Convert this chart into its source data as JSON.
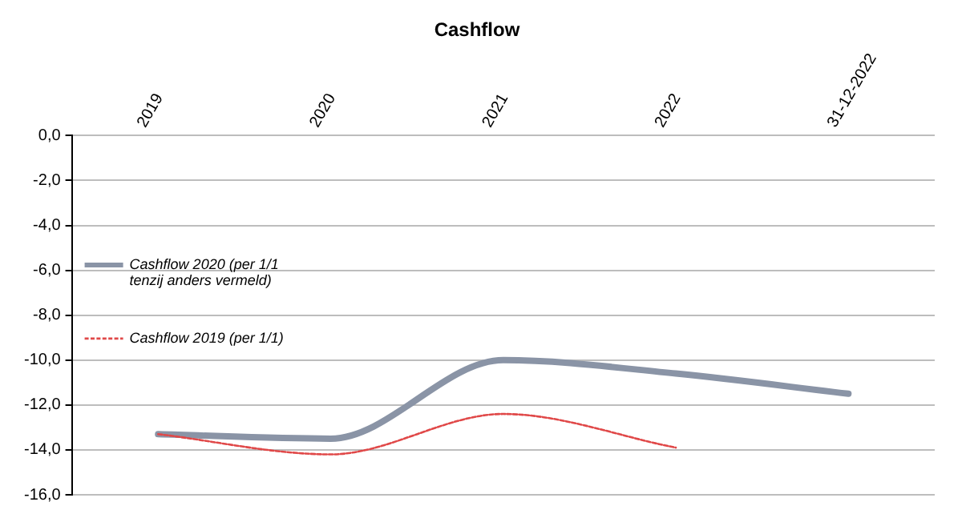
{
  "chart_data": {
    "type": "line",
    "title": "Cashflow",
    "categories": [
      "2019",
      "2020",
      "2021",
      "2022",
      "31-12-2022"
    ],
    "series": [
      {
        "name": "Cashflow 2020 (per 1/1 tenzij anders vermeld)",
        "color": "#8a94a6",
        "values": [
          -13.3,
          -13.5,
          -10.0,
          -10.6,
          -11.5
        ],
        "line_style": "solid"
      },
      {
        "name": "Cashflow 2019 (per 1/1)",
        "color": "#e04848",
        "values": [
          -13.3,
          -14.2,
          -12.4,
          -13.9,
          null
        ],
        "line_style": "dashed"
      }
    ],
    "ylim": [
      -16,
      0
    ],
    "yticks": [
      {
        "value": 0,
        "label": "0,0"
      },
      {
        "value": -2,
        "label": "-2,0"
      },
      {
        "value": -4,
        "label": "-4,0"
      },
      {
        "value": -6,
        "label": "-6,0"
      },
      {
        "value": -8,
        "label": "-8,0"
      },
      {
        "value": -10,
        "label": "-10,0"
      },
      {
        "value": -12,
        "label": "-12,0"
      },
      {
        "value": -14,
        "label": "-14,0"
      },
      {
        "value": -16,
        "label": "-16,0"
      }
    ],
    "grid": "y",
    "legend": "left",
    "marker": "none"
  }
}
